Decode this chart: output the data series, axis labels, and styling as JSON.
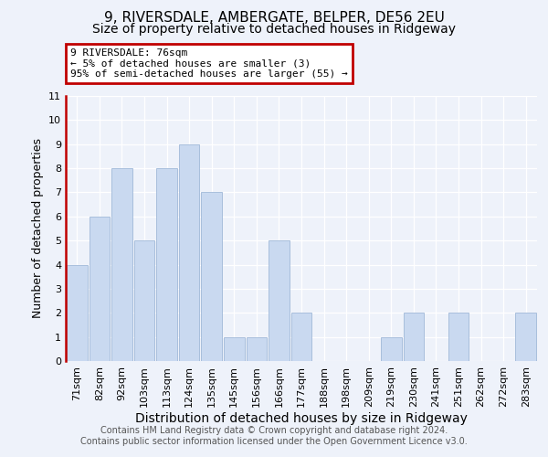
{
  "title": "9, RIVERSDALE, AMBERGATE, BELPER, DE56 2EU",
  "subtitle": "Size of property relative to detached houses in Ridgeway",
  "xlabel": "Distribution of detached houses by size in Ridgeway",
  "ylabel": "Number of detached properties",
  "bin_labels": [
    "71sqm",
    "82sqm",
    "92sqm",
    "103sqm",
    "113sqm",
    "124sqm",
    "135sqm",
    "145sqm",
    "156sqm",
    "166sqm",
    "177sqm",
    "188sqm",
    "198sqm",
    "209sqm",
    "219sqm",
    "230sqm",
    "241sqm",
    "251sqm",
    "262sqm",
    "272sqm",
    "283sqm"
  ],
  "values": [
    4,
    6,
    8,
    5,
    8,
    9,
    7,
    1,
    1,
    5,
    2,
    0,
    0,
    0,
    1,
    2,
    0,
    2,
    0,
    0,
    2
  ],
  "bar_color": "#c9d9f0",
  "bar_edge_color": "#a0b8d8",
  "annotation_line1": "9 RIVERSDALE: 76sqm",
  "annotation_line2": "← 5% of detached houses are smaller (3)",
  "annotation_line3": "95% of semi-detached houses are larger (55) →",
  "annotation_box_edgecolor": "#c00000",
  "property_line_color": "#c00000",
  "ylim": [
    0,
    11
  ],
  "yticks": [
    0,
    1,
    2,
    3,
    4,
    5,
    6,
    7,
    8,
    9,
    10,
    11
  ],
  "footer_text": "Contains HM Land Registry data © Crown copyright and database right 2024.\nContains public sector information licensed under the Open Government Licence v3.0.",
  "title_fontsize": 11,
  "subtitle_fontsize": 10,
  "ylabel_fontsize": 9,
  "xlabel_fontsize": 10,
  "tick_fontsize": 8,
  "footer_fontsize": 7,
  "bg_color": "#eef2fa",
  "grid_color": "#ffffff"
}
